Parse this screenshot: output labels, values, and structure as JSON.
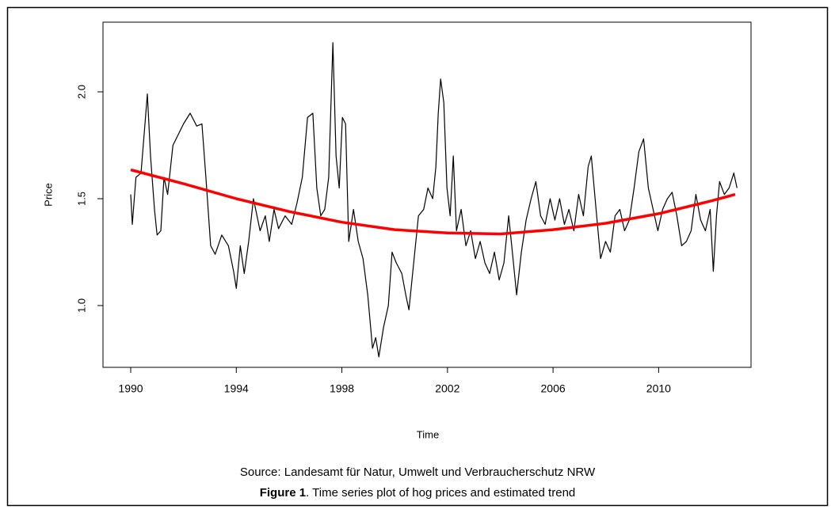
{
  "chart_data": {
    "type": "line",
    "y_label": "Price",
    "x_label": "Time",
    "source": "Source: Landesamt für Natur, Umwelt und Verbraucherschutz NRW",
    "figure_label": "Figure 1",
    "caption": ".  Time series plot of hog prices and estimated trend",
    "xlim": [
      1988.95,
      2013.5
    ],
    "xticks": [
      1990,
      1994,
      1998,
      2002,
      2006,
      2010
    ],
    "ylim": [
      0.711,
      2.326
    ],
    "yticks": [
      {
        "value": 1.0,
        "label": "1.0"
      },
      {
        "value": 1.5,
        "label": "1.5"
      },
      {
        "value": 2.0,
        "label": "2.0"
      }
    ],
    "series": [
      {
        "color": "#000000",
        "x": [
          1990.0,
          1990.06,
          1990.2,
          1990.39,
          1990.54,
          1990.63,
          1990.75,
          1990.9,
          1991.0,
          1991.14,
          1991.26,
          1991.4,
          1991.6,
          1991.8,
          1992.0,
          1992.25,
          1992.5,
          1992.7,
          1992.85,
          1993.03,
          1993.2,
          1993.45,
          1993.7,
          1993.9,
          1994.0,
          1994.15,
          1994.3,
          1994.47,
          1994.65,
          1994.9,
          1995.1,
          1995.25,
          1995.43,
          1995.6,
          1995.85,
          1996.1,
          1996.3,
          1996.5,
          1996.7,
          1996.9,
          1997.05,
          1997.2,
          1997.35,
          1997.5,
          1997.66,
          1997.78,
          1997.9,
          1998.02,
          1998.14,
          1998.26,
          1998.44,
          1998.62,
          1998.8,
          1998.98,
          1999.16,
          1999.28,
          1999.4,
          1999.58,
          1999.76,
          1999.9,
          2000.06,
          2000.27,
          2000.42,
          2000.54,
          2000.72,
          2000.9,
          2001.1,
          2001.26,
          2001.44,
          2001.56,
          2001.65,
          2001.74,
          2001.86,
          2001.98,
          2002.1,
          2002.22,
          2002.34,
          2002.52,
          2002.7,
          2002.88,
          2003.06,
          2003.24,
          2003.42,
          2003.6,
          2003.78,
          2003.96,
          2004.14,
          2004.32,
          2004.5,
          2004.62,
          2004.8,
          2004.98,
          2005.17,
          2005.35,
          2005.53,
          2005.7,
          2005.89,
          2006.07,
          2006.25,
          2006.43,
          2006.6,
          2006.79,
          2006.97,
          2007.15,
          2007.33,
          2007.45,
          2007.63,
          2007.8,
          2007.99,
          2008.17,
          2008.35,
          2008.53,
          2008.71,
          2008.89,
          2009.07,
          2009.25,
          2009.43,
          2009.61,
          2009.79,
          2009.97,
          2010.15,
          2010.33,
          2010.51,
          2010.69,
          2010.87,
          2011.05,
          2011.23,
          2011.41,
          2011.59,
          2011.77,
          2011.95,
          2012.07,
          2012.19,
          2012.31,
          2012.49,
          2012.67,
          2012.85,
          2012.97
        ],
        "values": [
          1.52,
          1.38,
          1.6,
          1.62,
          1.85,
          1.99,
          1.7,
          1.45,
          1.33,
          1.35,
          1.6,
          1.52,
          1.75,
          1.8,
          1.85,
          1.9,
          1.84,
          1.85,
          1.6,
          1.28,
          1.24,
          1.33,
          1.28,
          1.16,
          1.08,
          1.28,
          1.15,
          1.3,
          1.5,
          1.35,
          1.42,
          1.3,
          1.45,
          1.36,
          1.42,
          1.38,
          1.48,
          1.6,
          1.88,
          1.9,
          1.55,
          1.42,
          1.45,
          1.6,
          2.23,
          1.7,
          1.55,
          1.88,
          1.85,
          1.3,
          1.45,
          1.3,
          1.22,
          1.05,
          0.8,
          0.85,
          0.76,
          0.9,
          1.0,
          1.25,
          1.2,
          1.15,
          1.05,
          0.98,
          1.2,
          1.42,
          1.45,
          1.55,
          1.5,
          1.65,
          1.9,
          2.06,
          1.95,
          1.55,
          1.42,
          1.7,
          1.35,
          1.45,
          1.28,
          1.35,
          1.22,
          1.3,
          1.2,
          1.15,
          1.25,
          1.12,
          1.2,
          1.42,
          1.2,
          1.05,
          1.25,
          1.4,
          1.5,
          1.58,
          1.42,
          1.38,
          1.5,
          1.4,
          1.5,
          1.38,
          1.45,
          1.35,
          1.52,
          1.42,
          1.65,
          1.7,
          1.45,
          1.22,
          1.3,
          1.25,
          1.42,
          1.45,
          1.35,
          1.4,
          1.55,
          1.72,
          1.78,
          1.55,
          1.45,
          1.35,
          1.45,
          1.5,
          1.53,
          1.42,
          1.28,
          1.3,
          1.35,
          1.52,
          1.4,
          1.35,
          1.45,
          1.16,
          1.42,
          1.58,
          1.52,
          1.55,
          1.62,
          1.55
        ],
        "width": 1.2
      },
      {
        "color": "#ff0000",
        "x": [
          1990,
          1992,
          1994,
          1996,
          1998,
          2000,
          2002,
          2004,
          2006,
          2008,
          2010,
          2012,
          2012.9
        ],
        "values": [
          1.635,
          1.57,
          1.5,
          1.44,
          1.39,
          1.355,
          1.34,
          1.335,
          1.355,
          1.385,
          1.43,
          1.49,
          1.52
        ],
        "width": 3.5
      }
    ]
  }
}
